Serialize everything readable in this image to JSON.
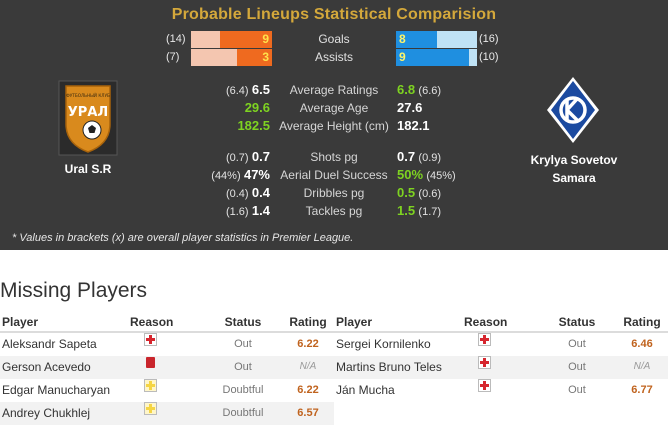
{
  "panel": {
    "title": "Probable Lineups Statistical Comparision",
    "footnote": "* Values in brackets (x) are overall player statistics in Premier League."
  },
  "teams": {
    "home": {
      "name": "Ural S.R",
      "logo_text": "УРАЛ",
      "logo_subtext": "ФУТБОЛЬНЫЙ КЛУБ"
    },
    "away": {
      "name_line1": "Krylya Sovetov",
      "name_line2": "Samara"
    }
  },
  "bars": [
    {
      "label": "Goals",
      "home_bracket": "(14)",
      "home_value": "9",
      "home_fraction": 0.64,
      "away_value": "8",
      "away_bracket": "(16)",
      "away_fraction": 0.5
    },
    {
      "label": "Assists",
      "home_bracket": "(7)",
      "home_value": "3",
      "home_fraction": 0.43,
      "away_value": "9",
      "away_bracket": "(10)",
      "away_fraction": 0.9
    }
  ],
  "stats": [
    {
      "label": "Average Ratings",
      "home_bracket": "(6.4)",
      "home_value": "6.5",
      "home_better": false,
      "away_value": "6.8",
      "away_bracket": "(6.6)",
      "away_better": true
    },
    {
      "label": "Average Age",
      "home_bracket": "",
      "home_value": "29.6",
      "home_better": true,
      "away_value": "27.6",
      "away_bracket": "",
      "away_better": false
    },
    {
      "label": "Average Height (cm)",
      "home_bracket": "",
      "home_value": "182.5",
      "home_better": true,
      "away_value": "182.1",
      "away_bracket": "",
      "away_better": false
    },
    {
      "label": "Shots pg",
      "home_bracket": "(0.7)",
      "home_value": "0.7",
      "home_better": false,
      "away_value": "0.7",
      "away_bracket": "(0.9)",
      "away_better": false
    },
    {
      "label": "Aerial Duel Success",
      "home_bracket": "(44%)",
      "home_value": "47%",
      "home_better": false,
      "away_value": "50%",
      "away_bracket": "(45%)",
      "away_better": true
    },
    {
      "label": "Dribbles pg",
      "home_bracket": "(0.4)",
      "home_value": "0.4",
      "home_better": false,
      "away_value": "0.5",
      "away_bracket": "(0.6)",
      "away_better": true
    },
    {
      "label": "Tackles pg",
      "home_bracket": "(1.6)",
      "home_value": "1.4",
      "home_better": false,
      "away_value": "1.5",
      "away_bracket": "(1.7)",
      "away_better": true
    }
  ],
  "missing": {
    "title": "Missing Players",
    "headers": {
      "player": "Player",
      "reason": "Reason",
      "status": "Status",
      "rating": "Rating"
    },
    "home": [
      {
        "player": "Aleksandr Sapeta",
        "reason_icon": "injury-cross-icon",
        "status": "Out",
        "rating": "6.22"
      },
      {
        "player": "Gerson Acevedo",
        "reason_icon": "red-card-icon",
        "status": "Out",
        "rating": "N/A"
      },
      {
        "player": "Edgar Manucharyan",
        "reason_icon": "doubtful-cross-icon",
        "status": "Doubtful",
        "rating": "6.22"
      },
      {
        "player": "Andrey Chukhlej",
        "reason_icon": "doubtful-cross-icon",
        "status": "Doubtful",
        "rating": "6.57"
      }
    ],
    "away": [
      {
        "player": "Sergei Kornilenko",
        "reason_icon": "injury-cross-icon",
        "status": "Out",
        "rating": "6.46"
      },
      {
        "player": "Martins Bruno Teles",
        "reason_icon": "injury-cross-icon",
        "status": "Out",
        "rating": "N/A"
      },
      {
        "player": "Ján Mucha",
        "reason_icon": "injury-cross-icon",
        "status": "Out",
        "rating": "6.77"
      }
    ]
  },
  "colors": {
    "home_bar": "#ef6a1f",
    "home_bar_bg": "#f4c6b0",
    "away_bar": "#1f8fe0",
    "away_bar_bg": "#bfe2f5",
    "better_value": "#7ed321",
    "title_gold": "#d4a83b"
  }
}
